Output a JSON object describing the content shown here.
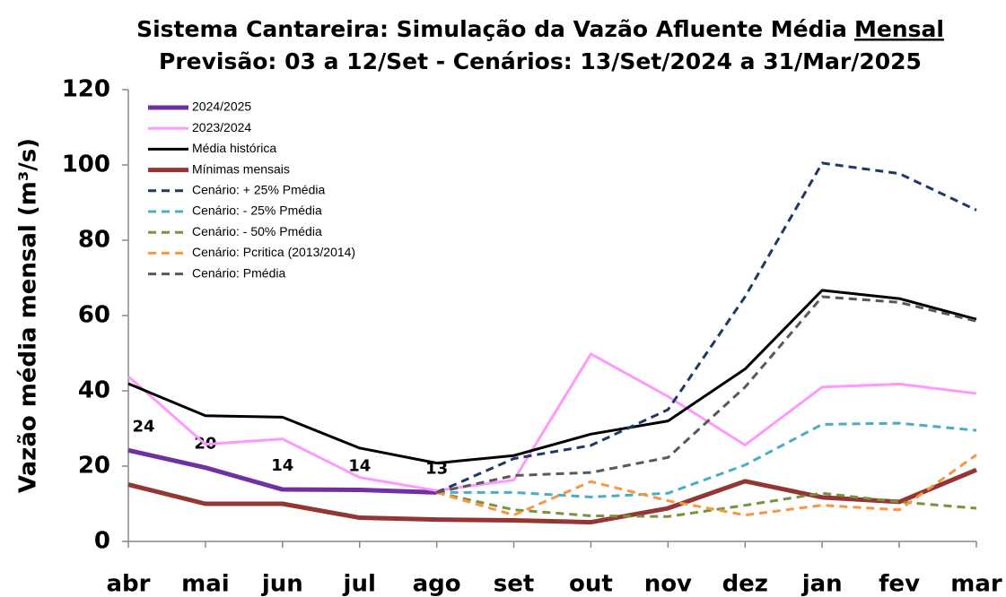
{
  "chart_data": {
    "type": "line",
    "title": [
      "Sistema Cantareira: Simulação da Vazão Afluente Média",
      "Mensal",
      "Previsão: 03 a 12/Set - Cenários: 13/Set/2024 a 31/Mar/2025"
    ],
    "y_label": "Vazão média mensal (m³/s)",
    "categories": [
      "abr",
      "mai",
      "jun",
      "jul",
      "ago",
      "set",
      "out",
      "nov",
      "dez",
      "jan",
      "fev",
      "mar"
    ],
    "ylim": [
      0,
      120
    ],
    "yticks": [
      0,
      20,
      40,
      60,
      80,
      100,
      120
    ],
    "legend": "upper-left",
    "series": [
      {
        "name": "2024/2025",
        "color": "#7030a0",
        "width": 5,
        "dash": false,
        "values": [
          24.2,
          19.6,
          13.8,
          13.7,
          13.0,
          null,
          null,
          null,
          null,
          null,
          null,
          null
        ],
        "value_labels": [
          "24",
          "20",
          "14",
          "14",
          "13",
          null,
          null,
          null,
          null,
          null,
          null,
          null
        ]
      },
      {
        "name": "2023/2024",
        "color": "#ff99ff",
        "width": 3,
        "dash": false,
        "values": [
          43.8,
          25.8,
          27.2,
          17.0,
          13.5,
          16.3,
          49.8,
          38.5,
          25.6,
          41.0,
          41.8,
          39.3
        ]
      },
      {
        "name": "Média histórica",
        "color": "#000000",
        "width": 3,
        "dash": false,
        "values": [
          41.9,
          33.4,
          33.0,
          24.8,
          20.8,
          22.8,
          28.5,
          32.0,
          45.8,
          66.7,
          64.5,
          59.0
        ]
      },
      {
        "name": "Mínimas mensais",
        "color": "#943634",
        "width": 5,
        "dash": false,
        "values": [
          15.1,
          10.0,
          10.0,
          6.3,
          5.8,
          5.6,
          5.1,
          8.8,
          16.0,
          11.7,
          10.5,
          19.0
        ]
      },
      {
        "name": "Cenário: + 25% Pmédia",
        "color": "#1f3864",
        "width": 3,
        "dash": true,
        "values": [
          null,
          null,
          null,
          null,
          13.0,
          22.0,
          25.5,
          35.0,
          65.0,
          100.5,
          97.7,
          88.0
        ]
      },
      {
        "name": "Cenário: - 25% Pmédia",
        "color": "#4bacc6",
        "width": 3,
        "dash": true,
        "values": [
          null,
          null,
          null,
          null,
          13.0,
          13.0,
          11.8,
          12.8,
          20.3,
          31.1,
          31.4,
          29.5
        ]
      },
      {
        "name": "Cenário: - 50% Pmédia",
        "color": "#77933c",
        "width": 3,
        "dash": true,
        "values": [
          null,
          null,
          null,
          null,
          13.0,
          8.4,
          6.8,
          6.6,
          9.6,
          12.8,
          10.5,
          8.8
        ]
      },
      {
        "name": "Cenário: Pcritica (2013/2014)",
        "color": "#f79646",
        "width": 3,
        "dash": true,
        "values": [
          null,
          null,
          null,
          null,
          13.0,
          7.0,
          15.9,
          10.8,
          7.0,
          9.6,
          8.4,
          23.0
        ]
      },
      {
        "name": "Cenário: Pmédia",
        "color": "#595959",
        "width": 3,
        "dash": true,
        "values": [
          null,
          null,
          null,
          null,
          13.0,
          17.5,
          18.3,
          22.3,
          41.0,
          65.0,
          63.5,
          58.5
        ]
      }
    ]
  }
}
